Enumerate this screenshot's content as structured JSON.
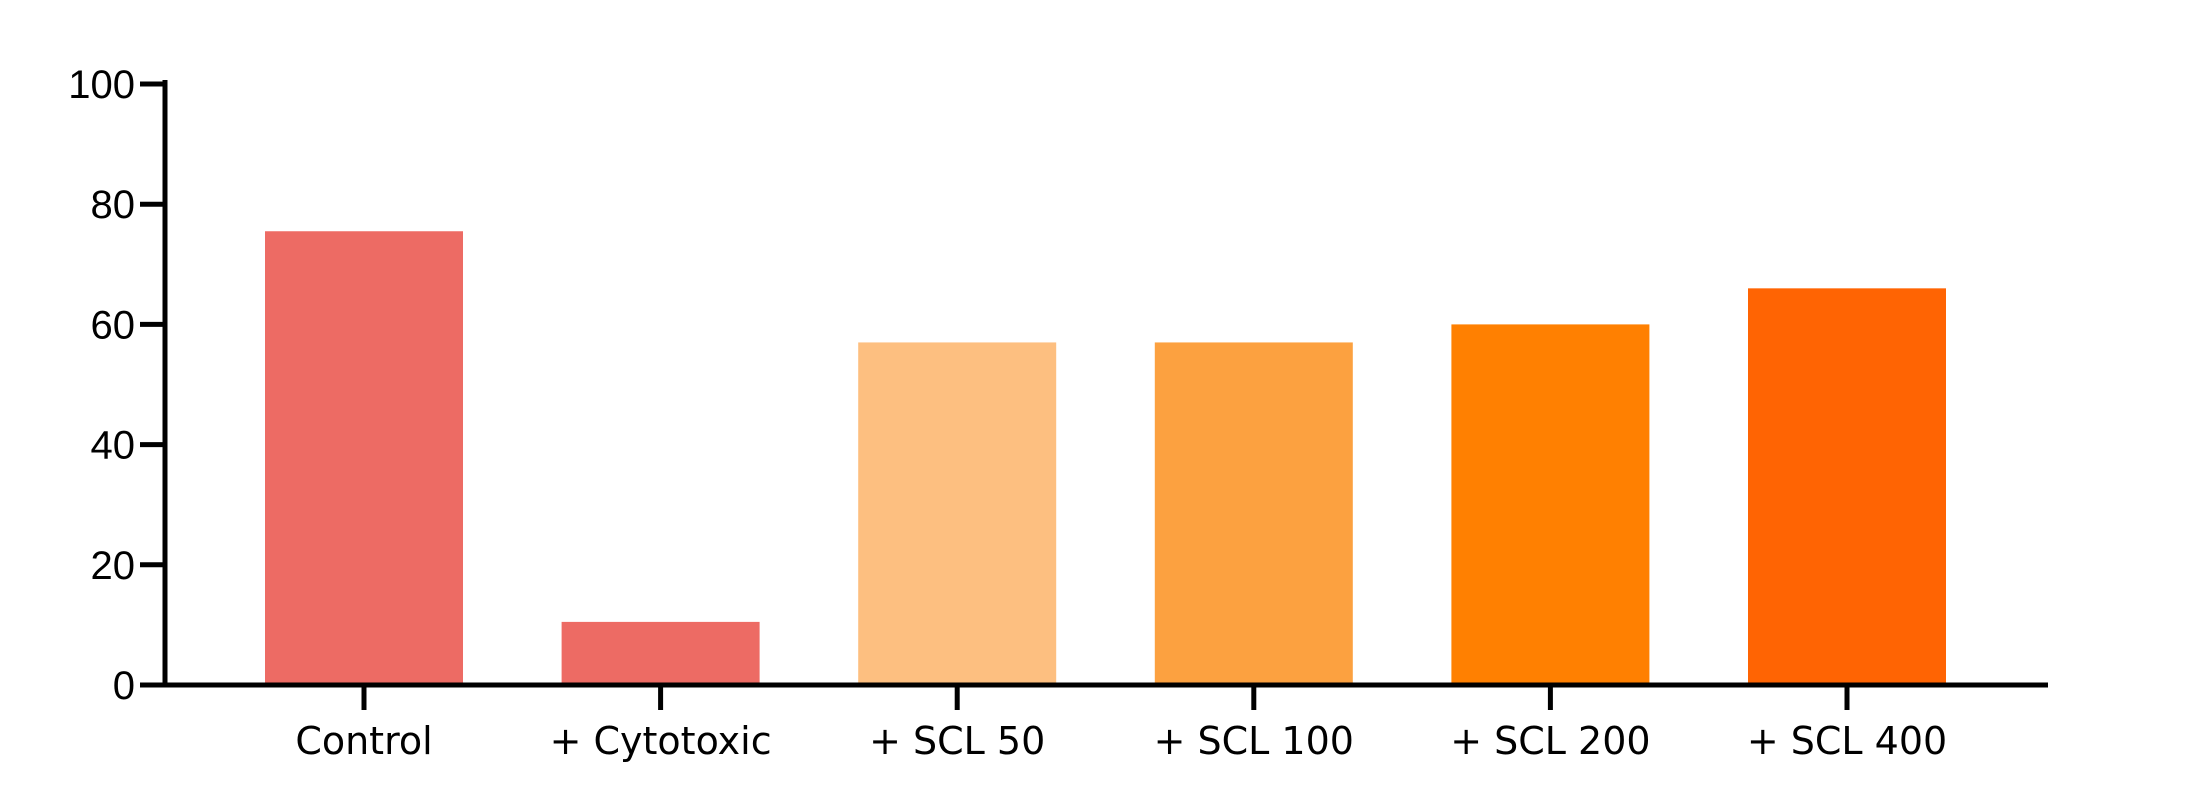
{
  "chart_data": {
    "type": "bar",
    "title": "",
    "xlabel": "",
    "ylabel": "",
    "categories": [
      "Control",
      "+ Cytotoxic",
      "+ SCL 50",
      "+ SCL 100",
      "+ SCL 200",
      "+ SCL 400"
    ],
    "values": [
      75.5,
      10.5,
      57,
      57,
      60,
      66
    ],
    "colors": [
      "#ED6B64",
      "#ED6B64",
      "#FDBF80",
      "#FCA140",
      "#FF8001",
      "#FF6403"
    ],
    "ylim": [
      0,
      100
    ],
    "yticks": [
      0,
      20,
      40,
      60,
      80,
      100
    ],
    "grid": false,
    "legend": "none"
  }
}
